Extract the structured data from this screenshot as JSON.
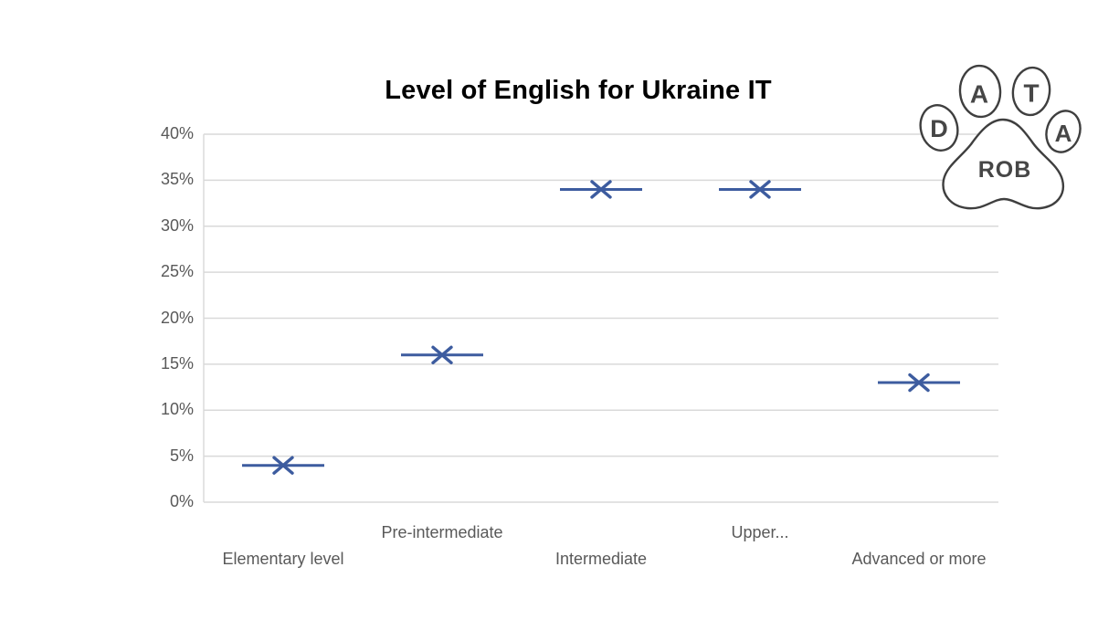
{
  "chart_data": {
    "type": "scatter",
    "title": "Level of English for Ukraine IT",
    "categories": [
      "Elementary level",
      "Pre-intermediate",
      "Intermediate",
      "Upper...",
      "Advanced or more"
    ],
    "values": [
      4,
      16,
      34,
      34,
      13
    ],
    "unit": "%",
    "xlabel": "",
    "ylabel": "",
    "ylim": [
      0,
      40
    ],
    "ytick_step": 5,
    "ytick_labels": [
      "0%",
      "5%",
      "10%",
      "15%",
      "20%",
      "25%",
      "30%",
      "35%",
      "40%"
    ],
    "grid": true,
    "legend": "none",
    "marker_style": "x-with-horizontal-dash",
    "colors": {
      "marker": "#3D5C9F",
      "gridline": "#D9D9D9",
      "axis_line": "#D9D9D9",
      "axis_text": "#595959",
      "title_text": "#000000"
    }
  },
  "logo": {
    "toe_letters": [
      "D",
      "A",
      "T",
      "A"
    ],
    "pad_text": "ROB",
    "outline_color": "#3F3F3F",
    "letter_color": "#464646"
  }
}
